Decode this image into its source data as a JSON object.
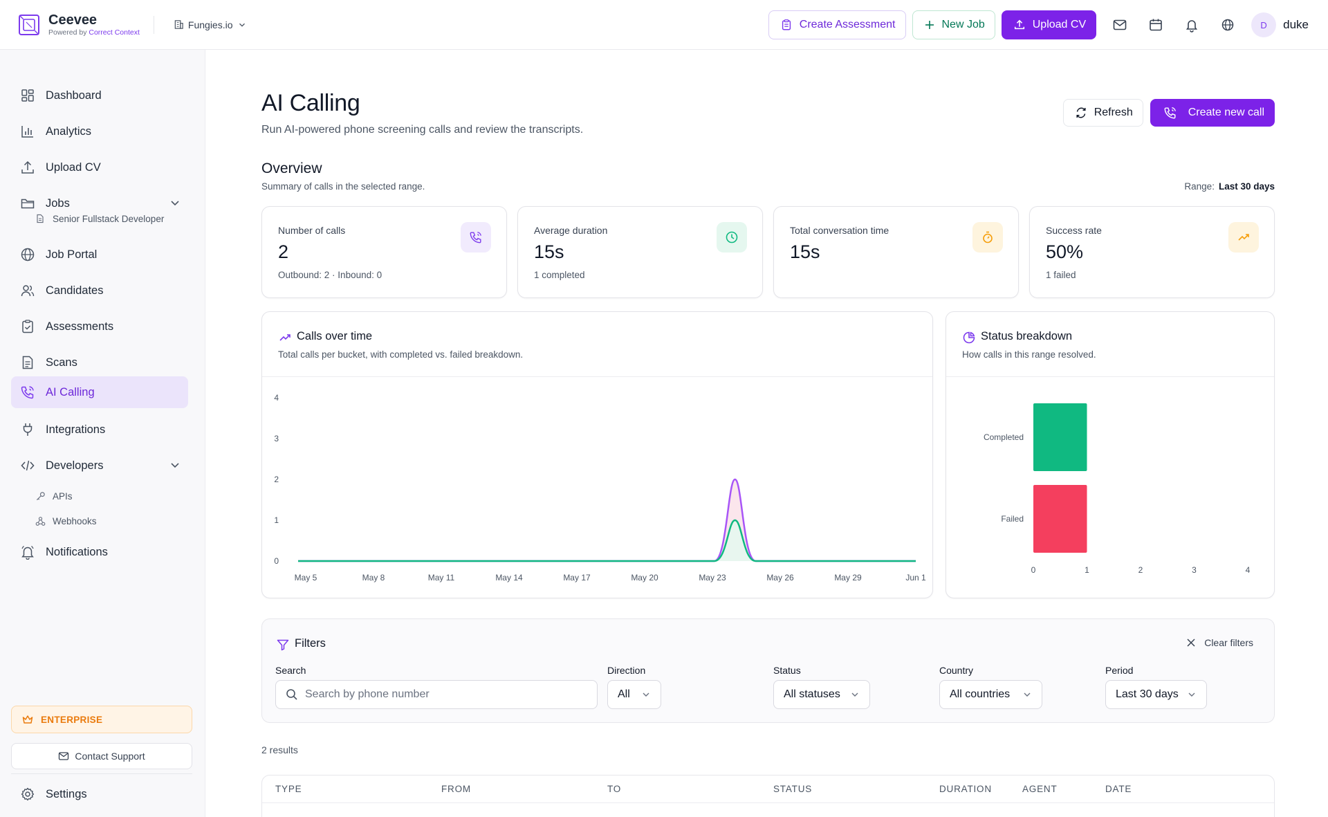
{
  "brand": {
    "name": "Ceevee",
    "powered_by": "Powered by",
    "powered_company": "Correct Context"
  },
  "org": {
    "name": "Fungies.io"
  },
  "header": {
    "create_assessment": "Create Assessment",
    "new_job": "New Job",
    "upload_cv": "Upload CV",
    "user_initial": "D",
    "user_name": "duke"
  },
  "sidebar": {
    "items": [
      {
        "label": "Dashboard",
        "icon": "grid-icon"
      },
      {
        "label": "Analytics",
        "icon": "bar-chart-icon"
      },
      {
        "label": "Upload CV",
        "icon": "upload-icon"
      },
      {
        "label": "Jobs",
        "icon": "folder-icon"
      },
      {
        "label": "Job Portal",
        "icon": "globe-icon"
      },
      {
        "label": "Candidates",
        "icon": "users-icon"
      },
      {
        "label": "Assessments",
        "icon": "clipboard-check-icon"
      },
      {
        "label": "Scans",
        "icon": "document-icon"
      },
      {
        "label": "AI Calling",
        "icon": "phone-icon"
      },
      {
        "label": "Integrations",
        "icon": "plug-icon"
      },
      {
        "label": "Developers",
        "icon": "code-icon"
      },
      {
        "label": "Notifications",
        "icon": "bell-icon"
      }
    ],
    "jobs_sub": [
      "Senior Fullstack Developer"
    ],
    "dev_sub": [
      "APIs",
      "Webhooks"
    ],
    "enterprise": "ENTERPRISE",
    "contact_support": "Contact Support",
    "settings": "Settings"
  },
  "page": {
    "title": "AI Calling",
    "subtitle": "Run AI-powered phone screening calls and review the transcripts.",
    "refresh": "Refresh",
    "create_call": "Create new call"
  },
  "overview": {
    "title": "Overview",
    "subtitle": "Summary of calls in the selected range.",
    "range_label": "Range:",
    "range_value": "Last 30 days"
  },
  "stats": [
    {
      "label": "Number of calls",
      "value": "2",
      "note": "Outbound: 2 · Inbound: 0",
      "icon": "phone-icon",
      "color": "#7c3aed",
      "bg": "#f1ebfd"
    },
    {
      "label": "Average duration",
      "value": "15s",
      "note": "1 completed",
      "icon": "clock-icon",
      "color": "#10b981",
      "bg": "#e5f7ef"
    },
    {
      "label": "Total conversation time",
      "value": "15s",
      "note": "",
      "icon": "timer-icon",
      "color": "#f59e0b",
      "bg": "#fef4de"
    },
    {
      "label": "Success rate",
      "value": "50%",
      "note": "1 failed",
      "icon": "trending-up-icon",
      "color": "#f59e0b",
      "bg": "#fef4de"
    }
  ],
  "calls_chart": {
    "title": "Calls over time",
    "subtitle": "Total calls per bucket, with completed vs. failed breakdown."
  },
  "status_chart": {
    "title": "Status breakdown",
    "subtitle": "How calls in this range resolved."
  },
  "chart_data": [
    {
      "type": "area",
      "x": [
        "May 5",
        "May 8",
        "May 11",
        "May 14",
        "May 17",
        "May 20",
        "May 23",
        "May 24",
        "May 25",
        "May 26",
        "May 29",
        "Jun 1"
      ],
      "x_ticks": [
        "May 5",
        "May 8",
        "May 11",
        "May 14",
        "May 17",
        "May 20",
        "May 23",
        "May 26",
        "May 29",
        "Jun 1"
      ],
      "series": [
        {
          "values": [
            0,
            0,
            0,
            0,
            0,
            0,
            0,
            2,
            0,
            0,
            0,
            0
          ],
          "color": "#a855f7",
          "fill": "#fbe3ea"
        },
        {
          "values": [
            0,
            0,
            0,
            0,
            0,
            0,
            0,
            1,
            0,
            0,
            0,
            0
          ],
          "color": "#10b981",
          "fill": "#e6f7ef"
        }
      ],
      "ylim": [
        0,
        4
      ],
      "y_ticks": [
        0,
        1,
        2,
        3,
        4
      ],
      "grid": false
    },
    {
      "type": "bar",
      "orientation": "horizontal",
      "categories": [
        "Completed",
        "Failed"
      ],
      "values": [
        1,
        1
      ],
      "colors": [
        "#10b981",
        "#f43f5e"
      ],
      "xlim": [
        0,
        4
      ],
      "x_ticks": [
        0,
        1,
        2,
        3,
        4
      ]
    }
  ],
  "filters": {
    "title": "Filters",
    "clear": "Clear filters",
    "search_label": "Search",
    "search_placeholder": "Search by phone number",
    "direction_label": "Direction",
    "direction_value": "All",
    "status_label": "Status",
    "status_value": "All statuses",
    "country_label": "Country",
    "country_value": "All countries",
    "period_label": "Period",
    "period_value": "Last 30 days"
  },
  "results": {
    "count_text": "2 results"
  },
  "table": {
    "columns": [
      "TYPE",
      "FROM",
      "TO",
      "STATUS",
      "DURATION",
      "AGENT",
      "DATE"
    ]
  }
}
